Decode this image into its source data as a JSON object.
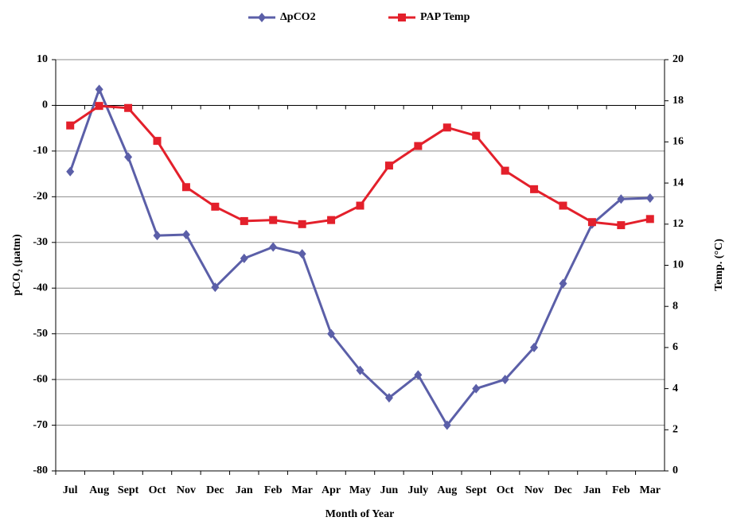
{
  "chart_data": {
    "type": "line",
    "x_label": "Month of Year",
    "y_label": "pCO₂ (µatm)",
    "y2_label": "Temp. (°C)",
    "categories": [
      "Jul",
      "Aug",
      "Sept",
      "Oct",
      "Nov",
      "Dec",
      "Jan",
      "Feb",
      "Mar",
      "Apr",
      "May",
      "Jun",
      "July",
      "Aug",
      "Sept",
      "Oct",
      "Nov",
      "Dec",
      "Jan",
      "Feb",
      "Mar"
    ],
    "series": [
      {
        "name": "ΔpCO2",
        "color": "#5b5fa8",
        "marker": "diamond",
        "values": [
          -14.5,
          3.5,
          -11.3,
          -28.5,
          -28.3,
          -39.8,
          -33.5,
          -31,
          -32.5,
          -50,
          -58,
          -64,
          -59,
          -70,
          -62,
          -60,
          -53,
          -39,
          -26,
          -20.5,
          -20.3
        ]
      },
      {
        "name": "PAP Temp",
        "color": "#e3202b",
        "marker": "square",
        "axis": "y2",
        "values": [
          16.8,
          17.75,
          17.65,
          16.05,
          13.8,
          12.85,
          12.15,
          12.2,
          12.0,
          12.2,
          12.9,
          14.85,
          15.8,
          16.7,
          16.3,
          14.6,
          13.7,
          12.9,
          12.1,
          11.95,
          12.25
        ]
      }
    ],
    "ylim": [
      -80,
      10
    ],
    "yticks": [
      -80,
      -70,
      -60,
      -50,
      -40,
      -30,
      -20,
      -10,
      0,
      10
    ],
    "y2lim": [
      0,
      20
    ],
    "y2ticks": [
      0,
      2,
      4,
      6,
      8,
      10,
      12,
      14,
      16,
      18,
      20
    ],
    "grid": true,
    "legend": "top"
  }
}
